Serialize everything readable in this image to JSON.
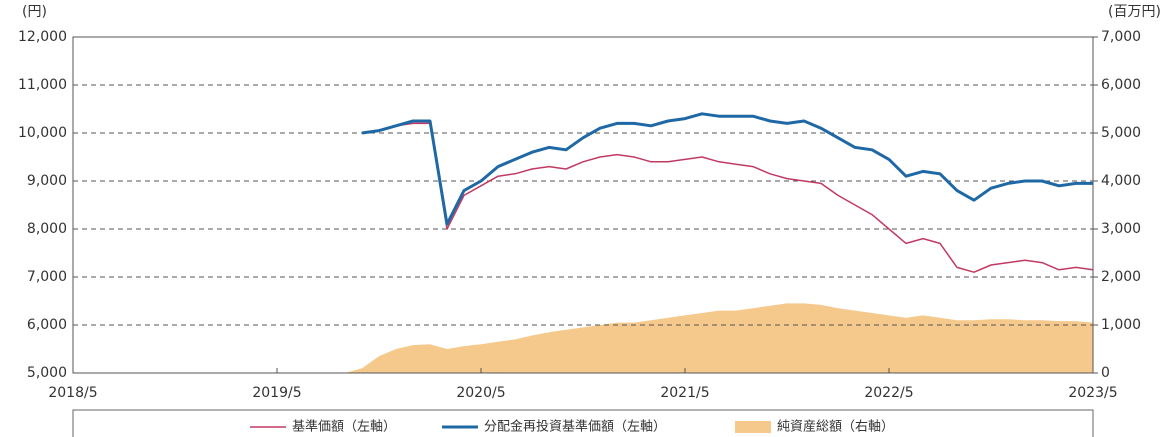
{
  "chart_data": {
    "type": "line",
    "y_unit": "(円)",
    "y2_unit": "(百万円)",
    "x": [
      "2019/9",
      "2019/10",
      "2019/11",
      "2019/12",
      "2020/1",
      "2020/2",
      "2020/3",
      "2020/4",
      "2020/5",
      "2020/6",
      "2020/7",
      "2020/8",
      "2020/9",
      "2020/10",
      "2020/11",
      "2020/12",
      "2021/1",
      "2021/2",
      "2021/3",
      "2021/4",
      "2021/5",
      "2021/6",
      "2021/7",
      "2021/8",
      "2021/9",
      "2021/10",
      "2021/11",
      "2021/12",
      "2022/1",
      "2022/2",
      "2022/3",
      "2022/4",
      "2022/5",
      "2022/6",
      "2022/7",
      "2022/8",
      "2022/9",
      "2022/10",
      "2022/11",
      "2022/12",
      "2023/1",
      "2023/2",
      "2023/3",
      "2023/4",
      "2023/5"
    ],
    "xlim": [
      "2018/5",
      "2023/5"
    ],
    "xticks": [
      "2018/5",
      "2019/5",
      "2020/5",
      "2021/5",
      "2022/5",
      "2023/5"
    ],
    "ylim": [
      5000,
      12000
    ],
    "yticks": [
      {
        "value": 5000,
        "label": "5,000"
      },
      {
        "value": 6000,
        "label": "6,000"
      },
      {
        "value": 7000,
        "label": "7,000"
      },
      {
        "value": 8000,
        "label": "8,000"
      },
      {
        "value": 9000,
        "label": "9,000"
      },
      {
        "value": 10000,
        "label": "10,000"
      },
      {
        "value": 11000,
        "label": "11,000"
      },
      {
        "value": 12000,
        "label": "12,000"
      }
    ],
    "y2lim": [
      0,
      7000
    ],
    "y2ticks": [
      0,
      {
        "value": 1000,
        "label": "1,000"
      },
      {
        "value": 2000,
        "label": "2,000"
      },
      {
        "value": 3000,
        "label": "3,000"
      },
      {
        "value": 4000,
        "label": "4,000"
      },
      {
        "value": 5000,
        "label": "5,000"
      },
      {
        "value": 6000,
        "label": "6,000"
      },
      {
        "value": 7000,
        "label": "7,000"
      }
    ],
    "grid": true,
    "series": [
      {
        "name": "純資産総額（右軸）",
        "color": "#f5c98c",
        "type": "area",
        "axis": "y2",
        "values": [
          0,
          100,
          350,
          500,
          580,
          600,
          500,
          560,
          600,
          650,
          700,
          780,
          850,
          900,
          950,
          1000,
          1050,
          1050,
          1100,
          1150,
          1200,
          1250,
          1300,
          1300,
          1350,
          1400,
          1450,
          1450,
          1420,
          1350,
          1300,
          1250,
          1200,
          1150,
          1200,
          1150,
          1100,
          1100,
          1120,
          1120,
          1100,
          1100,
          1080,
          1080,
          1050
        ]
      },
      {
        "name": "基準価額（左軸）",
        "color": "#c23a62",
        "type": "line",
        "width": 1.5,
        "values": [
          null,
          10000,
          10050,
          10150,
          10200,
          10200,
          8000,
          8700,
          8900,
          9100,
          9150,
          9250,
          9300,
          9250,
          9400,
          9500,
          9550,
          9500,
          9400,
          9400,
          9450,
          9500,
          9400,
          9350,
          9300,
          9150,
          9050,
          9000,
          8950,
          8700,
          8500,
          8300,
          8000,
          7700,
          7800,
          7700,
          7200,
          7100,
          7250,
          7300,
          7350,
          7300,
          7150,
          7200,
          7150
        ]
      },
      {
        "name": "分配金再投資基準価額（左軸）",
        "color": "#1f68a6",
        "type": "line",
        "width": 3,
        "values": [
          null,
          10000,
          10050,
          10150,
          10250,
          10250,
          8100,
          8800,
          9000,
          9300,
          9450,
          9600,
          9700,
          9650,
          9900,
          10100,
          10200,
          10200,
          10150,
          10250,
          10300,
          10400,
          10350,
          10350,
          10350,
          10250,
          10200,
          10250,
          10100,
          9900,
          9700,
          9650,
          9450,
          9100,
          9200,
          9150,
          8800,
          8600,
          8850,
          8950,
          9000,
          9000,
          8900,
          8950,
          8950
        ]
      }
    ]
  }
}
